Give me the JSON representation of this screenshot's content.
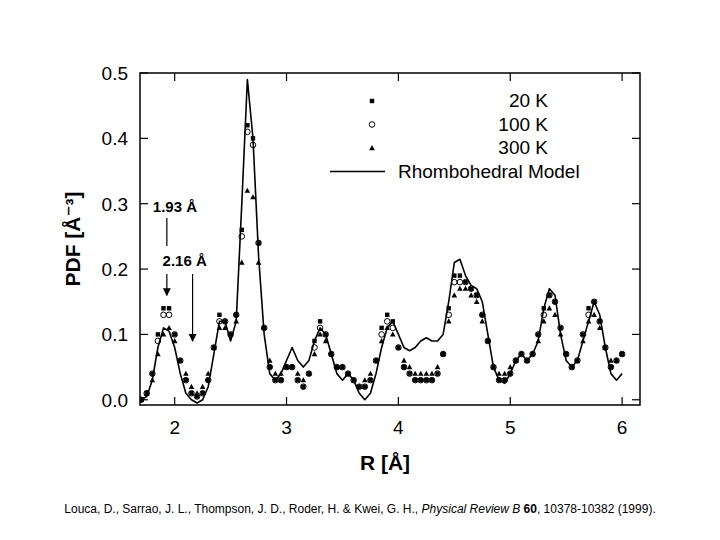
{
  "chart_data": {
    "type": "scatter",
    "xlabel": "R [Å]",
    "ylabel": "PDF [Å⁻³]",
    "x": [
      1.7,
      1.75,
      1.8,
      1.85,
      1.9,
      1.95,
      2,
      2.05,
      2.1,
      2.15,
      2.2,
      2.25,
      2.3,
      2.35,
      2.4,
      2.45,
      2.5,
      2.55,
      2.6,
      2.65,
      2.7,
      2.75,
      2.8,
      2.85,
      2.9,
      2.95,
      3,
      3.05,
      3.1,
      3.15,
      3.2,
      3.25,
      3.3,
      3.35,
      3.4,
      3.45,
      3.5,
      3.55,
      3.6,
      3.65,
      3.7,
      3.75,
      3.8,
      3.85,
      3.9,
      3.95,
      4,
      4.05,
      4.1,
      4.15,
      4.2,
      4.25,
      4.3,
      4.35,
      4.4,
      4.45,
      4.5,
      4.55,
      4.6,
      4.65,
      4.7,
      4.75,
      4.8,
      4.85,
      4.9,
      4.95,
      5,
      5.05,
      5.1,
      5.15,
      5.2,
      5.25,
      5.3,
      5.35,
      5.4,
      5.45,
      5.5,
      5.55,
      5.6,
      5.65,
      5.7,
      5.75,
      5.8,
      5.85,
      5.9,
      5.95,
      6
    ],
    "series": [
      {
        "name": "20 K",
        "type": "scatter",
        "marker": "square",
        "color": "#000000",
        "values": [
          0.0,
          0.01,
          0.04,
          0.1,
          0.14,
          0.14,
          0.1,
          0.06,
          0.03,
          0.01,
          0.005,
          0.01,
          0.03,
          0.08,
          0.13,
          0.12,
          0.1,
          0.13,
          0.26,
          0.42,
          0.4,
          0.24,
          0.11,
          0.05,
          0.03,
          0.03,
          0.05,
          0.05,
          0.03,
          0.02,
          0.04,
          0.09,
          0.12,
          0.1,
          0.07,
          0.05,
          0.05,
          0.04,
          0.03,
          0.02,
          0.02,
          0.03,
          0.06,
          0.11,
          0.13,
          0.12,
          0.08,
          0.05,
          0.04,
          0.03,
          0.03,
          0.03,
          0.03,
          0.04,
          0.07,
          0.14,
          0.19,
          0.19,
          0.18,
          0.17,
          0.16,
          0.13,
          0.09,
          0.05,
          0.03,
          0.03,
          0.04,
          0.06,
          0.07,
          0.06,
          0.07,
          0.1,
          0.14,
          0.16,
          0.15,
          0.11,
          0.07,
          0.05,
          0.06,
          0.1,
          0.14,
          0.15,
          0.12,
          0.08,
          0.05,
          0.06,
          0.07
        ]
      },
      {
        "name": "100 K",
        "type": "scatter",
        "marker": "circle",
        "color": "#000000",
        "values": [
          0.0,
          0.01,
          0.04,
          0.09,
          0.13,
          0.13,
          0.1,
          0.06,
          0.03,
          0.01,
          0.005,
          0.01,
          0.03,
          0.08,
          0.12,
          0.12,
          0.1,
          0.13,
          0.25,
          0.41,
          0.39,
          0.24,
          0.11,
          0.05,
          0.03,
          0.03,
          0.05,
          0.05,
          0.03,
          0.02,
          0.04,
          0.08,
          0.11,
          0.1,
          0.07,
          0.05,
          0.05,
          0.04,
          0.03,
          0.02,
          0.02,
          0.03,
          0.06,
          0.1,
          0.12,
          0.11,
          0.08,
          0.05,
          0.04,
          0.03,
          0.03,
          0.03,
          0.03,
          0.04,
          0.07,
          0.13,
          0.18,
          0.18,
          0.18,
          0.17,
          0.16,
          0.13,
          0.09,
          0.05,
          0.03,
          0.03,
          0.04,
          0.06,
          0.07,
          0.06,
          0.07,
          0.1,
          0.13,
          0.16,
          0.15,
          0.11,
          0.07,
          0.05,
          0.06,
          0.1,
          0.13,
          0.15,
          0.12,
          0.08,
          0.05,
          0.06,
          0.07
        ]
      },
      {
        "name": "300 K",
        "type": "scatter",
        "marker": "triangle",
        "color": "#000000",
        "values": [
          0.0,
          0.01,
          0.03,
          0.07,
          0.1,
          0.11,
          0.09,
          0.06,
          0.04,
          0.02,
          0.01,
          0.02,
          0.04,
          0.08,
          0.11,
          0.11,
          0.1,
          0.12,
          0.21,
          0.32,
          0.31,
          0.21,
          0.11,
          0.06,
          0.04,
          0.04,
          0.05,
          0.05,
          0.04,
          0.03,
          0.04,
          0.07,
          0.1,
          0.09,
          0.07,
          0.05,
          0.05,
          0.04,
          0.03,
          0.02,
          0.03,
          0.04,
          0.06,
          0.09,
          0.11,
          0.1,
          0.08,
          0.06,
          0.05,
          0.04,
          0.04,
          0.04,
          0.04,
          0.05,
          0.07,
          0.12,
          0.16,
          0.17,
          0.17,
          0.16,
          0.15,
          0.12,
          0.09,
          0.05,
          0.04,
          0.04,
          0.05,
          0.06,
          0.07,
          0.06,
          0.07,
          0.09,
          0.12,
          0.14,
          0.13,
          0.1,
          0.07,
          0.05,
          0.06,
          0.09,
          0.12,
          0.13,
          0.11,
          0.08,
          0.06,
          0.06,
          0.07
        ]
      },
      {
        "name": "Rhombohedral Model",
        "type": "line",
        "line_style": "solid",
        "color": "#000000",
        "values": [
          0.0,
          0.005,
          0.03,
          0.08,
          0.11,
          0.105,
          0.08,
          0.04,
          0.01,
          0.0,
          -0.005,
          0.0,
          0.02,
          0.07,
          0.12,
          0.12,
          0.09,
          0.12,
          0.3,
          0.49,
          0.4,
          0.22,
          0.1,
          0.04,
          0.03,
          0.04,
          0.06,
          0.08,
          0.06,
          0.05,
          0.06,
          0.09,
          0.11,
          0.1,
          0.07,
          0.04,
          0.03,
          0.04,
          0.03,
          0.01,
          0.0,
          0.01,
          0.04,
          0.08,
          0.11,
          0.12,
          0.1,
          0.08,
          0.075,
          0.08,
          0.09,
          0.095,
          0.09,
          0.09,
          0.1,
          0.15,
          0.21,
          0.215,
          0.19,
          0.175,
          0.17,
          0.15,
          0.1,
          0.05,
          0.03,
          0.025,
          0.04,
          0.06,
          0.07,
          0.06,
          0.07,
          0.09,
          0.14,
          0.17,
          0.16,
          0.1,
          0.06,
          0.05,
          0.06,
          0.09,
          0.12,
          0.15,
          0.13,
          0.08,
          0.04,
          0.03,
          0.04
        ]
      }
    ],
    "xlim": [
      1.69,
      6.16
    ],
    "ylim": [
      -0.008,
      0.5
    ],
    "xticks": [
      2,
      3,
      4,
      5,
      6
    ],
    "yticks": [
      {
        "value": 0,
        "label": "0.0"
      },
      0.1,
      0.2,
      0.3,
      0.4,
      0.5
    ],
    "grid": false,
    "legend": "upper-right",
    "annotations": [
      {
        "text": "1.93 Å",
        "x": 1.93,
        "y": 0.16
      },
      {
        "text": "2.16 Å",
        "x": 2.16,
        "y": 0.09
      }
    ]
  },
  "citation": {
    "authors": "Louca, D., Sarrao, J. L., Thompson, J. D., Roder, H. & Kwei, G. H.,",
    "journal": "Physical Review B",
    "volume": "60",
    "pages": ", 10378-10382 (1999)."
  }
}
